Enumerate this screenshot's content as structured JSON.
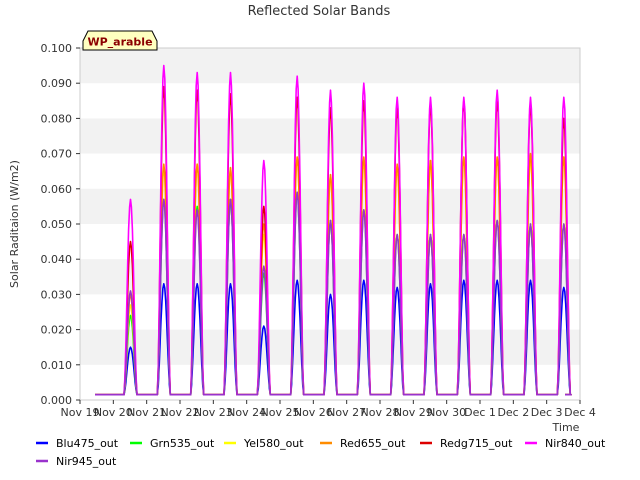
{
  "chart_data": {
    "type": "line",
    "title": "Reflected Solar Bands",
    "ylabel": "Solar Raditaion (W/m2)",
    "xlabel": "Time",
    "site_label": "WP_arable",
    "ylim": [
      0.0,
      0.1
    ],
    "y_ticks": [
      "0.000",
      "0.010",
      "0.020",
      "0.030",
      "0.040",
      "0.050",
      "0.060",
      "0.070",
      "0.080",
      "0.090",
      "0.100"
    ],
    "x_ticks": [
      "Nov 19",
      "Nov 20",
      "Nov 21",
      "Nov 22",
      "Nov 23",
      "Nov 24",
      "Nov 25",
      "Nov 26",
      "Nov 27",
      "Nov 28",
      "Nov 29",
      "Nov 30",
      "Dec 1",
      "Dec 2",
      "Dec 3",
      "Dec 4"
    ],
    "x_start": "Nov 19",
    "night_value": 0.0015,
    "legend_placement": "bottom",
    "grid": "horizontal bands",
    "days": [
      "Nov 20",
      "Nov 21",
      "Nov 22",
      "Nov 23",
      "Nov 24",
      "Nov 25",
      "Nov 26",
      "Nov 27",
      "Nov 28",
      "Nov 29",
      "Nov 30",
      "Dec 1",
      "Dec 2",
      "Dec 3"
    ],
    "series": [
      {
        "name": "Blu475_out",
        "color": "#0000ff",
        "values": [
          0.015,
          0.033,
          0.033,
          0.033,
          0.021,
          0.034,
          0.03,
          0.034,
          0.032,
          0.033,
          0.034,
          0.034,
          0.034,
          0.032
        ]
      },
      {
        "name": "Grn535_out",
        "color": "#00ff00",
        "values": [
          0.024,
          0.057,
          0.055,
          0.057,
          0.036,
          0.059,
          0.051,
          0.054,
          0.047,
          0.047,
          0.047,
          0.051,
          0.05,
          0.05
        ]
      },
      {
        "name": "Yel580_out",
        "color": "#ffff00",
        "values": [
          0.027,
          0.066,
          0.067,
          0.066,
          0.047,
          0.069,
          0.064,
          0.068,
          0.066,
          0.068,
          0.069,
          0.069,
          0.069,
          0.069
        ]
      },
      {
        "name": "Red655_out",
        "color": "#ff8c00",
        "values": [
          0.03,
          0.067,
          0.067,
          0.066,
          0.05,
          0.069,
          0.064,
          0.069,
          0.067,
          0.068,
          0.069,
          0.069,
          0.07,
          0.069
        ]
      },
      {
        "name": "Redg715_out",
        "color": "#dd0000",
        "values": [
          0.045,
          0.089,
          0.088,
          0.087,
          0.055,
          0.086,
          0.083,
          0.085,
          0.083,
          0.084,
          0.085,
          0.085,
          0.084,
          0.08
        ]
      },
      {
        "name": "Nir840_out",
        "color": "#ff00ff",
        "values": [
          0.057,
          0.095,
          0.093,
          0.093,
          0.068,
          0.092,
          0.088,
          0.09,
          0.086,
          0.086,
          0.086,
          0.088,
          0.086,
          0.086
        ]
      },
      {
        "name": "Nir945_out",
        "color": "#9932cc",
        "values": [
          0.031,
          0.057,
          0.054,
          0.057,
          0.038,
          0.059,
          0.051,
          0.054,
          0.047,
          0.047,
          0.047,
          0.051,
          0.05,
          0.05
        ]
      }
    ]
  }
}
